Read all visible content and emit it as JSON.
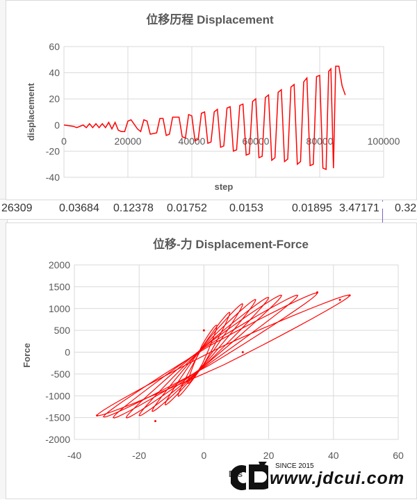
{
  "spreadsheet": {
    "row_cells": [
      "26309",
      "0.03684",
      "0.12378",
      "0.01752",
      "0.0153",
      "0.01895",
      "3.47171",
      "0.32"
    ]
  },
  "chart_data": [
    {
      "type": "line",
      "title": "位移历程 Displacement",
      "xlabel": "step",
      "ylabel": "displacement",
      "xlim": [
        0,
        100000
      ],
      "ylim": [
        -40,
        60
      ],
      "xticks": [
        "0",
        "20000",
        "40000",
        "60000",
        "80000",
        "100000"
      ],
      "yticks": [
        "-40",
        "-20",
        "0",
        "20",
        "40",
        "60"
      ],
      "grid": true,
      "legend": "none",
      "color": "#ff0000",
      "x": [
        0,
        3000,
        4000,
        6000,
        7000,
        8000,
        9000,
        10000,
        11000,
        12000,
        13000,
        14000,
        15000,
        16000,
        17000,
        18000,
        19000,
        20000,
        21000,
        23000,
        24000,
        25000,
        26000,
        27000,
        29000,
        30000,
        31000,
        32000,
        33000,
        34000,
        36000,
        37000,
        38000,
        39000,
        40000,
        41000,
        42000,
        43000,
        44000,
        45000,
        46000,
        47000,
        48000,
        49000,
        50000,
        51000,
        52000,
        53000,
        54000,
        55000,
        56000,
        57000,
        58000,
        59000,
        60000,
        61000,
        62000,
        63000,
        64000,
        65000,
        66000,
        67000,
        68000,
        69000,
        70000,
        71000,
        72000,
        73000,
        74000,
        75000,
        76000,
        77000,
        78000,
        79000,
        80000,
        81000,
        82000,
        82800,
        83500,
        84300,
        85000,
        86000,
        87000,
        88000
      ],
      "y": [
        0,
        -1,
        -2,
        0,
        -2,
        1,
        -2,
        1,
        -2,
        1,
        -2,
        2,
        -3,
        2,
        -4,
        -5,
        -5,
        3,
        4,
        -3,
        -5,
        4,
        3,
        -7,
        -6,
        5,
        5,
        -8,
        -7,
        6,
        6,
        -9,
        -10,
        8,
        7,
        -12,
        -11,
        9,
        10,
        -14,
        -13,
        10,
        12,
        -17,
        -16,
        13,
        14,
        -20,
        -19,
        15,
        16,
        -23,
        -22,
        18,
        20,
        -25,
        -24,
        21,
        23,
        -27,
        -25,
        25,
        27,
        -28,
        -26,
        29,
        31,
        -30,
        -28,
        33,
        36,
        -31,
        -30,
        37,
        38,
        -33,
        -34,
        41,
        43,
        -33,
        45,
        45,
        30,
        23
      ]
    },
    {
      "type": "scatter",
      "title": "位移-力 Displacement-Force",
      "xlabel": "Dis",
      "ylabel": "Force",
      "xlim": [
        -40,
        60
      ],
      "ylim": [
        -2000,
        2000
      ],
      "xticks": [
        "-40",
        "-20",
        "0",
        "20",
        "40",
        "60"
      ],
      "yticks": [
        "-2000",
        "-1500",
        "-1000",
        "-500",
        "0",
        "500",
        "1000",
        "1500",
        "2000"
      ],
      "grid": true,
      "legend": "none",
      "color": "#ff0000",
      "loops_amplitude": [
        {
          "dmin": -5,
          "dmax": 4,
          "fmin": -700,
          "fmax": 600
        },
        {
          "dmin": -8,
          "dmax": 8,
          "fmin": -1000,
          "fmax": 900
        },
        {
          "dmin": -12,
          "dmax": 12,
          "fmin": -1200,
          "fmax": 1100
        },
        {
          "dmin": -16,
          "dmax": 16,
          "fmin": -1350,
          "fmax": 1200
        },
        {
          "dmin": -20,
          "dmax": 20,
          "fmin": -1450,
          "fmax": 1250
        },
        {
          "dmin": -24,
          "dmax": 24,
          "fmin": -1500,
          "fmax": 1300
        },
        {
          "dmin": -28,
          "dmax": 29,
          "fmin": -1500,
          "fmax": 1300
        },
        {
          "dmin": -31,
          "dmax": 35,
          "fmin": -1480,
          "fmax": 1350
        },
        {
          "dmin": -33,
          "dmax": 45,
          "fmin": -1450,
          "fmax": 1300
        }
      ],
      "key_points": [
        {
          "x": -33,
          "y": -1450
        },
        {
          "x": -15,
          "y": -1580
        },
        {
          "x": 45,
          "y": 1300
        },
        {
          "x": 42,
          "y": 1200
        },
        {
          "x": 35,
          "y": 1370
        },
        {
          "x": 0,
          "y": 500
        },
        {
          "x": 12,
          "y": 0
        }
      ]
    }
  ],
  "watermark": {
    "since": "SINCE 2015",
    "url": "www.jdcui.com"
  }
}
